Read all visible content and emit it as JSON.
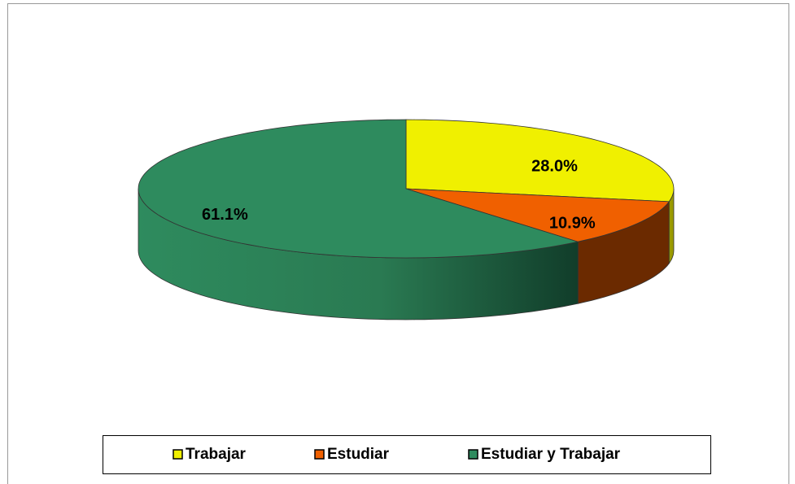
{
  "chart_data": {
    "type": "pie",
    "categories": [
      "Trabajar",
      "Estudiar",
      "Estudiar y Trabajar"
    ],
    "values": [
      28.0,
      10.9,
      61.1
    ],
    "value_labels": [
      "28.0%",
      "10.9%",
      "61.1%"
    ],
    "colors": [
      "#f0f000",
      "#f06000",
      "#2e8b5e"
    ],
    "legend": "bottom"
  }
}
